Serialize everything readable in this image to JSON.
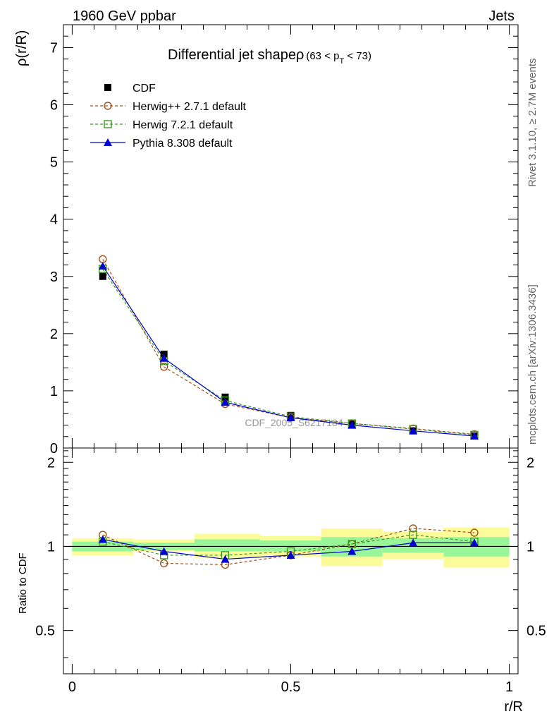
{
  "header": {
    "left": "1960 GeV ppbar",
    "right": "Jets"
  },
  "side_labels": {
    "rivet": "Rivet 3.1.10, ≥ 2.7M events",
    "mcplots": "mcplots.cern.ch [arXiv:1306.3436]"
  },
  "watermark": "CDF_2005_S6217184",
  "chart_data": [
    {
      "type": "scatter",
      "panel": "main",
      "title_main": "Differential jet shapeρ",
      "title_sub": "(63 < p",
      "title_sub_index": "T",
      "title_sub_end": " < 73)",
      "ylabel": "ρ(r/R)",
      "xlabel": "",
      "xlim": [
        -0.02,
        1.02
      ],
      "ylim": [
        0,
        7.4
      ],
      "y_ticks": [
        "0",
        "1",
        "2",
        "3",
        "4",
        "5",
        "6",
        "7"
      ],
      "legend_position": "top-left",
      "x": [
        0.07,
        0.21,
        0.35,
        0.5,
        0.64,
        0.78,
        0.92
      ],
      "series": [
        {
          "name": "CDF",
          "style": "data",
          "color": "#000000",
          "values": [
            3.0,
            1.64,
            0.89,
            0.57,
            0.42,
            0.3,
            0.21
          ]
        },
        {
          "name": "Herwig++ 2.7.1 default",
          "style": "circle-dashed",
          "color": "#a0521a",
          "values": [
            3.3,
            1.42,
            0.77,
            0.53,
            0.43,
            0.34,
            0.24
          ]
        },
        {
          "name": "Herwig 7.2.1 default",
          "style": "square-dashed",
          "color": "#3a9a1e",
          "values": [
            3.13,
            1.52,
            0.83,
            0.55,
            0.43,
            0.33,
            0.23
          ]
        },
        {
          "name": "Pythia 8.308 default",
          "style": "triangle-solid",
          "color": "#0000d0",
          "values": [
            3.18,
            1.57,
            0.8,
            0.53,
            0.4,
            0.3,
            0.21
          ]
        }
      ]
    },
    {
      "type": "scatter",
      "panel": "ratio",
      "ylabel": "Ratio to CDF",
      "xlabel": "r/R",
      "xlim": [
        -0.02,
        1.02
      ],
      "ylim": [
        0.35,
        2.25
      ],
      "x_ticks": [
        "0",
        "0.5",
        "1"
      ],
      "y_ticks": [
        "0.5",
        "1",
        "2"
      ],
      "bands": {
        "bin_edges": [
          0.0,
          0.14,
          0.28,
          0.43,
          0.57,
          0.71,
          0.85,
          1.0
        ],
        "inner_low": [
          0.96,
          0.97,
          0.96,
          0.96,
          0.92,
          0.95,
          0.92
        ],
        "inner_high": [
          1.04,
          1.03,
          1.06,
          1.05,
          1.08,
          1.07,
          1.08
        ],
        "outer_low": [
          0.93,
          0.96,
          0.91,
          0.92,
          0.85,
          0.9,
          0.84
        ],
        "outer_high": [
          1.07,
          1.06,
          1.11,
          1.09,
          1.16,
          1.13,
          1.17
        ],
        "inner_color": "#98f598",
        "outer_color": "#fbfb9a"
      },
      "x": [
        0.07,
        0.21,
        0.35,
        0.5,
        0.64,
        0.78,
        0.92
      ],
      "series": [
        {
          "name": "Herwig++ 2.7.1 default",
          "style": "circle-dashed",
          "color": "#a0521a",
          "values": [
            1.1,
            0.87,
            0.86,
            0.93,
            1.02,
            1.16,
            1.12
          ]
        },
        {
          "name": "Herwig 7.2.1 default",
          "style": "square-dashed",
          "color": "#3a9a1e",
          "values": [
            1.04,
            0.93,
            0.93,
            0.96,
            1.02,
            1.1,
            1.04
          ]
        },
        {
          "name": "Pythia 8.308 default",
          "style": "triangle-solid",
          "color": "#0000d0",
          "values": [
            1.06,
            0.96,
            0.9,
            0.93,
            0.96,
            1.03,
            1.03
          ]
        }
      ]
    }
  ]
}
